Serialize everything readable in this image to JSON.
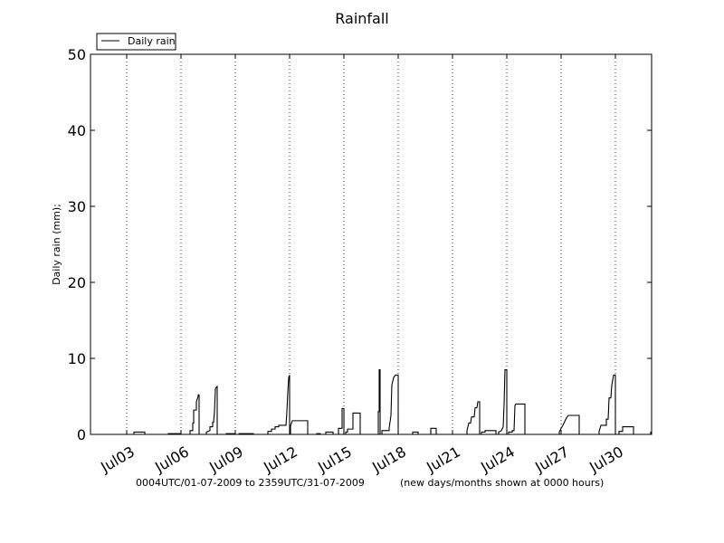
{
  "chart_data": {
    "type": "line",
    "title": "Rainfall",
    "xlabel": "",
    "ylabel": "Daily rain  (mm);",
    "xlim_days": [
      0.0,
      31.0
    ],
    "ylim": [
      0,
      50
    ],
    "yticks": [
      0,
      10,
      20,
      30,
      40,
      50
    ],
    "xticks": [
      {
        "day": 2.0,
        "label": "Jul03"
      },
      {
        "day": 5.0,
        "label": "Jul06"
      },
      {
        "day": 8.0,
        "label": "Jul09"
      },
      {
        "day": 11.0,
        "label": "Jul12"
      },
      {
        "day": 14.0,
        "label": "Jul15"
      },
      {
        "day": 17.0,
        "label": "Jul18"
      },
      {
        "day": 20.0,
        "label": "Jul21"
      },
      {
        "day": 23.0,
        "label": "Jul24"
      },
      {
        "day": 26.0,
        "label": "Jul27"
      },
      {
        "day": 29.0,
        "label": "Jul30"
      }
    ],
    "grid": "vertical dotted at x ticks",
    "legend": {
      "placement": "top-left",
      "entries": [
        "Daily rain"
      ]
    },
    "footer_left": "0004UTC/01-07-2009 to 2359UTC/31-07-2009",
    "footer_right": "(new days/months shown at 0000 hours)",
    "series": [
      {
        "name": "Daily rain",
        "color": "#000000",
        "points": [
          [
            0.0,
            0.0
          ],
          [
            2.4,
            0.0
          ],
          [
            2.4,
            0.3
          ],
          [
            3.0,
            0.3
          ],
          [
            3.0,
            0.0
          ],
          [
            4.3,
            0.0
          ],
          [
            4.3,
            0.1
          ],
          [
            5.0,
            0.1
          ],
          [
            5.0,
            0.0
          ],
          [
            5.5,
            0.0
          ],
          [
            5.5,
            0.5
          ],
          [
            5.65,
            0.5
          ],
          [
            5.65,
            1.5
          ],
          [
            5.7,
            1.5
          ],
          [
            5.7,
            3.2
          ],
          [
            5.85,
            3.2
          ],
          [
            5.85,
            4.3
          ],
          [
            5.95,
            5.0
          ],
          [
            5.95,
            5.2
          ],
          [
            6.0,
            5.2
          ],
          [
            6.0,
            0.0
          ],
          [
            6.4,
            0.0
          ],
          [
            6.4,
            0.3
          ],
          [
            6.6,
            0.5
          ],
          [
            6.6,
            1.0
          ],
          [
            6.75,
            1.0
          ],
          [
            6.75,
            1.6
          ],
          [
            6.8,
            1.6
          ],
          [
            6.85,
            3.0
          ],
          [
            6.9,
            6.0
          ],
          [
            6.95,
            6.2
          ],
          [
            7.0,
            6.3
          ],
          [
            7.0,
            0.0
          ],
          [
            7.5,
            0.0
          ],
          [
            7.5,
            0.1
          ],
          [
            8.0,
            0.1
          ],
          [
            8.0,
            0.0
          ],
          [
            8.2,
            0.0
          ],
          [
            8.2,
            0.1
          ],
          [
            9.0,
            0.1
          ],
          [
            9.0,
            0.0
          ],
          [
            9.8,
            0.0
          ],
          [
            9.8,
            0.4
          ],
          [
            10.0,
            0.4
          ],
          [
            10.0,
            0.7
          ],
          [
            10.2,
            0.7
          ],
          [
            10.2,
            1.0
          ],
          [
            10.4,
            1.0
          ],
          [
            10.4,
            1.2
          ],
          [
            10.8,
            1.2
          ],
          [
            10.85,
            3.0
          ],
          [
            10.9,
            5.5
          ],
          [
            10.95,
            7.5
          ],
          [
            11.0,
            7.8
          ],
          [
            11.0,
            0.0
          ],
          [
            11.05,
            0.0
          ],
          [
            11.05,
            1.1
          ],
          [
            11.15,
            1.8
          ],
          [
            12.0,
            1.8
          ],
          [
            12.0,
            0.0
          ],
          [
            12.5,
            0.0
          ],
          [
            12.5,
            0.1
          ],
          [
            12.7,
            0.1
          ],
          [
            12.7,
            0.0
          ],
          [
            13.0,
            0.0
          ],
          [
            13.0,
            0.3
          ],
          [
            13.4,
            0.3
          ],
          [
            13.4,
            0.0
          ],
          [
            13.7,
            0.0
          ],
          [
            13.7,
            0.8
          ],
          [
            13.9,
            0.8
          ],
          [
            13.9,
            3.4
          ],
          [
            14.0,
            3.4
          ],
          [
            14.0,
            0.0
          ],
          [
            14.1,
            0.0
          ],
          [
            14.1,
            0.3
          ],
          [
            14.2,
            0.3
          ],
          [
            14.2,
            0.7
          ],
          [
            14.5,
            0.7
          ],
          [
            14.5,
            2.8
          ],
          [
            14.9,
            2.8
          ],
          [
            14.9,
            0.0
          ],
          [
            15.9,
            0.0
          ],
          [
            15.9,
            3.0
          ],
          [
            15.95,
            3.0
          ],
          [
            15.95,
            8.5
          ],
          [
            16.0,
            8.5
          ],
          [
            16.0,
            0.0
          ],
          [
            16.1,
            0.0
          ],
          [
            16.1,
            0.5
          ],
          [
            16.5,
            0.5
          ],
          [
            16.5,
            0.8
          ],
          [
            16.6,
            2.5
          ],
          [
            16.65,
            6.5
          ],
          [
            16.75,
            7.5
          ],
          [
            16.85,
            7.8
          ],
          [
            17.0,
            7.8
          ],
          [
            17.0,
            0.0
          ],
          [
            17.8,
            0.0
          ],
          [
            17.8,
            0.3
          ],
          [
            18.1,
            0.3
          ],
          [
            18.1,
            0.0
          ],
          [
            18.8,
            0.0
          ],
          [
            18.8,
            0.8
          ],
          [
            19.1,
            0.8
          ],
          [
            19.1,
            0.0
          ],
          [
            20.8,
            0.0
          ],
          [
            20.8,
            0.5
          ],
          [
            20.9,
            1.5
          ],
          [
            21.0,
            1.5
          ],
          [
            21.05,
            2.3
          ],
          [
            21.2,
            2.3
          ],
          [
            21.25,
            3.5
          ],
          [
            21.35,
            3.5
          ],
          [
            21.4,
            4.3
          ],
          [
            21.5,
            4.3
          ],
          [
            21.5,
            0.0
          ],
          [
            21.6,
            0.0
          ],
          [
            21.6,
            0.3
          ],
          [
            21.8,
            0.3
          ],
          [
            21.8,
            0.5
          ],
          [
            22.4,
            0.5
          ],
          [
            22.4,
            0.0
          ],
          [
            22.55,
            0.0
          ],
          [
            22.55,
            0.3
          ],
          [
            22.7,
            0.5
          ],
          [
            22.8,
            1.0
          ],
          [
            22.85,
            4.0
          ],
          [
            22.9,
            8.5
          ],
          [
            23.0,
            8.5
          ],
          [
            23.0,
            0.0
          ],
          [
            23.1,
            0.0
          ],
          [
            23.1,
            0.3
          ],
          [
            23.3,
            0.3
          ],
          [
            23.3,
            0.5
          ],
          [
            23.4,
            0.5
          ],
          [
            23.45,
            3.8
          ],
          [
            23.5,
            4.0
          ],
          [
            24.0,
            4.0
          ],
          [
            24.0,
            0.0
          ],
          [
            25.9,
            0.0
          ],
          [
            25.9,
            0.3
          ],
          [
            26.0,
            0.8
          ],
          [
            26.1,
            1.2
          ],
          [
            26.2,
            1.7
          ],
          [
            26.3,
            2.2
          ],
          [
            26.4,
            2.5
          ],
          [
            27.0,
            2.5
          ],
          [
            27.0,
            0.0
          ],
          [
            28.1,
            0.0
          ],
          [
            28.1,
            0.4
          ],
          [
            28.2,
            1.2
          ],
          [
            28.5,
            1.2
          ],
          [
            28.5,
            2.0
          ],
          [
            28.6,
            2.0
          ],
          [
            28.65,
            4.8
          ],
          [
            28.75,
            4.8
          ],
          [
            28.8,
            6.5
          ],
          [
            28.9,
            7.8
          ],
          [
            29.0,
            7.8
          ],
          [
            29.0,
            0.0
          ],
          [
            29.2,
            0.0
          ],
          [
            29.2,
            0.4
          ],
          [
            29.4,
            0.4
          ],
          [
            29.4,
            1.0
          ],
          [
            30.0,
            1.0
          ],
          [
            30.0,
            0.0
          ],
          [
            30.95,
            0.0
          ],
          [
            30.95,
            0.3
          ],
          [
            31.0,
            0.3
          ]
        ]
      }
    ]
  }
}
